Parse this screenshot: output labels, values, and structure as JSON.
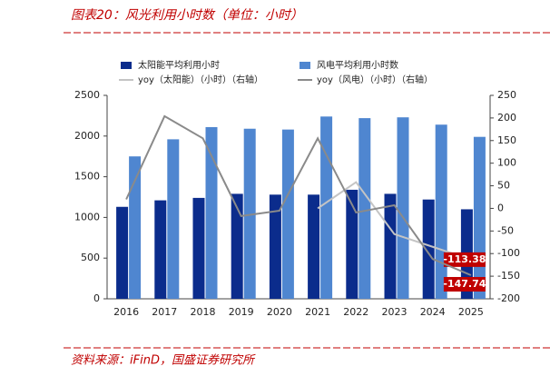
{
  "chart_data": {
    "type": "bar-line",
    "title": "图表20：风光利用小时数（单位：小时）",
    "source": "资料来源：iFinD，国盛证券研究所",
    "categories": [
      "2016",
      "2017",
      "2018",
      "2019",
      "2020",
      "2021",
      "2022",
      "2023",
      "2024",
      "2025"
    ],
    "series": [
      {
        "name": "太阳能平均利用小时",
        "color": "#0b2c8c",
        "kind": "bar",
        "values": [
          1130,
          1210,
          1240,
          1290,
          1280,
          1280,
          1340,
          1290,
          1220,
          1100
        ]
      },
      {
        "name": "风电平均利用小时数",
        "color": "#4f86d0",
        "kind": "bar",
        "values": [
          1750,
          1960,
          2110,
          2090,
          2080,
          2240,
          2220,
          2230,
          2140,
          1990
        ]
      },
      {
        "name": "yoy（太阳能）（小时）（右轴）",
        "color": "#c4c4c4",
        "kind": "line",
        "axis": "y2",
        "values": [
          null,
          null,
          null,
          null,
          null,
          0,
          58,
          -57,
          -85,
          -113.38
        ]
      },
      {
        "name": "yoy（风电）（小时）（右轴）",
        "color": "#8a8a8a",
        "kind": "line",
        "axis": "y2",
        "values": [
          20,
          204,
          155,
          -17,
          -5,
          155,
          -9,
          7,
          -112,
          -147.74
        ]
      }
    ],
    "ylim": [
      0,
      2500
    ],
    "yticks": [
      0,
      500,
      1000,
      1500,
      2000,
      2500
    ],
    "y2lim": [
      -200,
      250
    ],
    "y2ticks": [
      -200,
      -150,
      -100,
      -50,
      0,
      50,
      100,
      150,
      200,
      250
    ]
  }
}
